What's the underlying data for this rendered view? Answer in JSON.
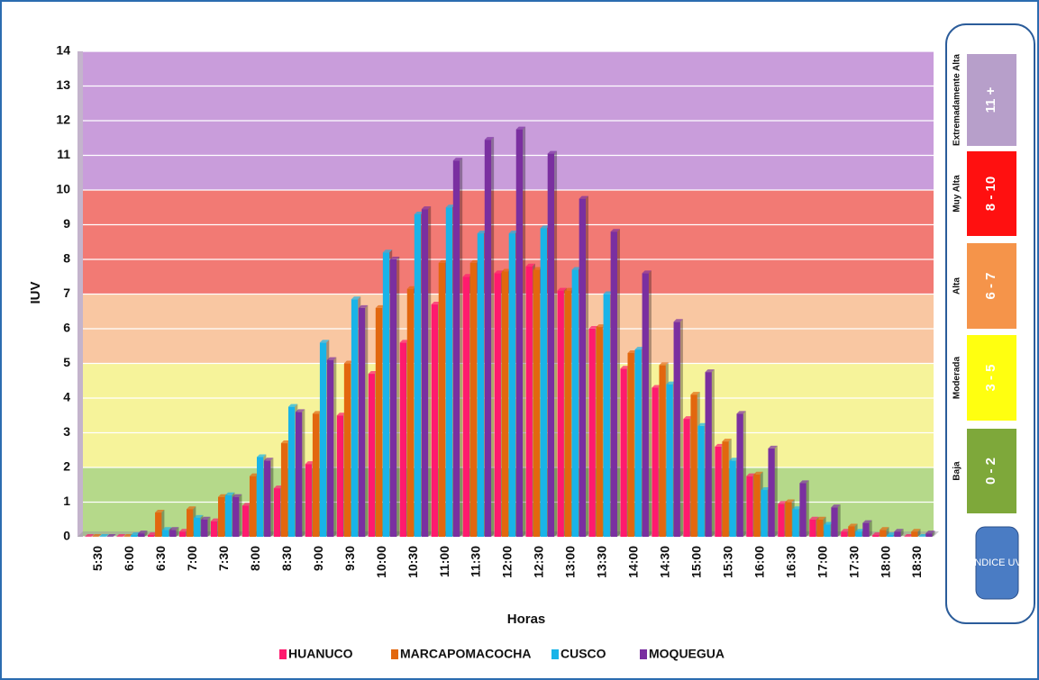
{
  "chart_data": {
    "type": "bar",
    "xlabel": "Horas",
    "ylabel": "IUV",
    "categories": [
      "5:30",
      "6:00",
      "6:30",
      "7:00",
      "7:30",
      "8:00",
      "8:30",
      "9:00",
      "9:30",
      "10:00",
      "10:30",
      "11:00",
      "11:30",
      "12:00",
      "12:30",
      "13:00",
      "13:30",
      "14:00",
      "14:30",
      "15:00",
      "15:30",
      "16:00",
      "16:30",
      "17:00",
      "17:30",
      "18:00",
      "18:30"
    ],
    "series": [
      {
        "name": "HUANUCO",
        "color": "#ff1a6e",
        "values": [
          0,
          0,
          0.05,
          0.15,
          0.45,
          0.9,
          1.4,
          2.1,
          3.5,
          4.7,
          5.6,
          6.7,
          7.5,
          7.6,
          7.8,
          7.1,
          6.0,
          4.85,
          4.3,
          3.4,
          2.6,
          1.75,
          0.95,
          0.5,
          0.15,
          0.05,
          0
        ]
      },
      {
        "name": "MARCAPOMACOCHA",
        "color": "#e2670e",
        "values": [
          0,
          0,
          0.7,
          0.8,
          1.15,
          1.75,
          2.7,
          3.55,
          5.0,
          6.6,
          7.15,
          7.9,
          7.9,
          7.65,
          7.7,
          7.1,
          6.05,
          5.3,
          4.95,
          4.1,
          2.75,
          1.8,
          1.0,
          0.5,
          0.3,
          0.2,
          0.15
        ]
      },
      {
        "name": "CUSCO",
        "color": "#19b4e8",
        "values": [
          0,
          0.05,
          0.2,
          0.55,
          1.2,
          2.3,
          3.75,
          5.6,
          6.85,
          8.2,
          9.3,
          9.5,
          8.75,
          8.75,
          8.9,
          7.7,
          7.0,
          5.4,
          4.4,
          3.2,
          2.2,
          1.35,
          0.8,
          0.35,
          0.15,
          0.05,
          0
        ]
      },
      {
        "name": "MOQUEGUA",
        "color": "#7a2fa0",
        "values": [
          0,
          0.1,
          0.2,
          0.5,
          1.15,
          2.2,
          3.6,
          5.1,
          6.6,
          8.0,
          9.45,
          10.85,
          11.45,
          11.75,
          11.05,
          9.75,
          8.8,
          7.6,
          6.2,
          4.75,
          3.55,
          2.55,
          1.55,
          0.85,
          0.4,
          0.15,
          0.1
        ]
      }
    ],
    "ylim": [
      0,
      14
    ],
    "yticks": [
      0,
      1,
      2,
      3,
      4,
      5,
      6,
      7,
      8,
      9,
      10,
      11,
      12,
      13,
      14
    ],
    "grid": true,
    "bands": [
      {
        "from": 0,
        "to": 2,
        "color": "#b5d98a"
      },
      {
        "from": 2,
        "to": 5,
        "color": "#f6f39a"
      },
      {
        "from": 5,
        "to": 7,
        "color": "#f9c7a2"
      },
      {
        "from": 7,
        "to": 10,
        "color": "#f27a74"
      },
      {
        "from": 10,
        "to": 14,
        "color": "#c99ddb"
      }
    ]
  },
  "uv_scale": {
    "levels": [
      {
        "name": "Extremadamente Alta",
        "range": "11 +",
        "color": "#b79fca"
      },
      {
        "name": "Muy Alta",
        "range": "8 - 10",
        "color": "#ff1010"
      },
      {
        "name": "Alta",
        "range": "6 - 7",
        "color": "#f5944a"
      },
      {
        "name": "Moderada",
        "range": "3 - 5",
        "color": "#ffff10"
      },
      {
        "name": "Baja",
        "range": "0 - 2",
        "color": "#7ea83a"
      }
    ],
    "button": "INDICE UV"
  }
}
